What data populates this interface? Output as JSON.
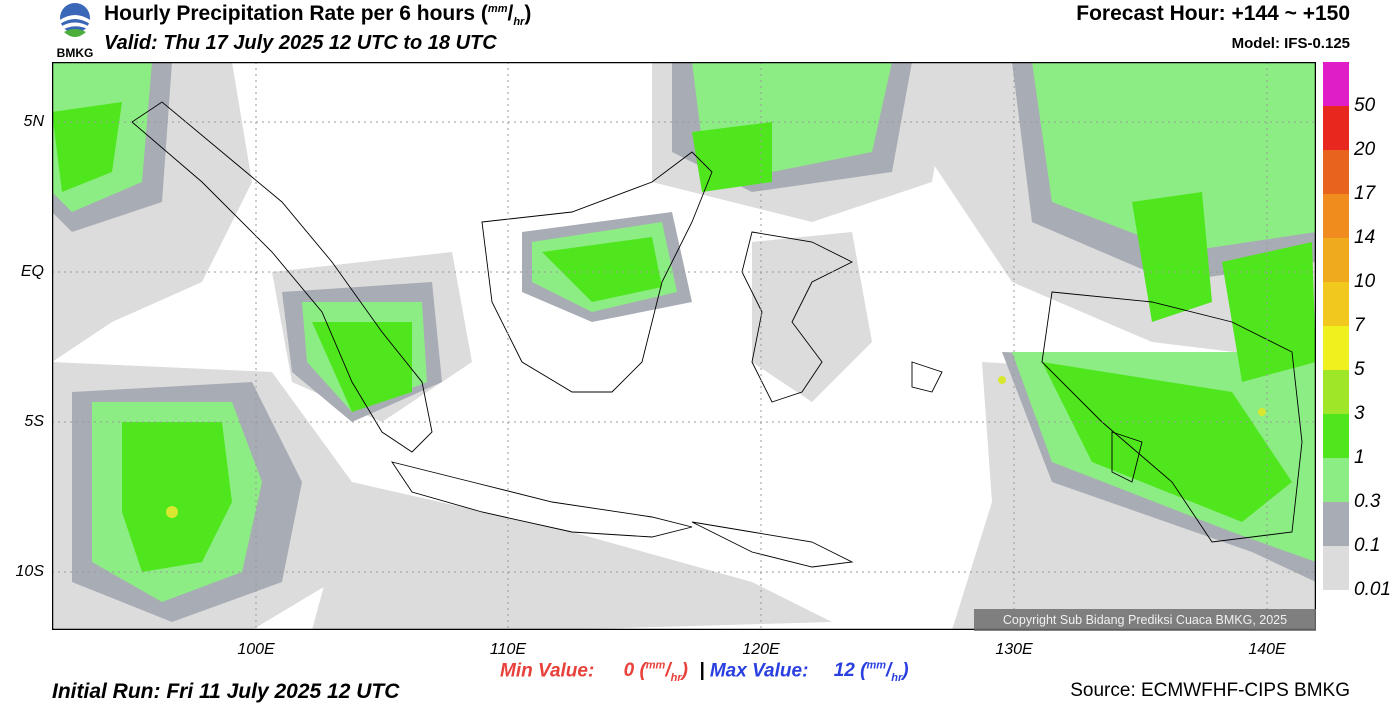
{
  "header": {
    "logo_text": "BMKG",
    "title": "Hourly Precipitation Rate per 6 hours",
    "title_unit_num": "mm",
    "title_unit_den": "hr",
    "valid": "Valid: Thu 17 July 2025 12 UTC to 18 UTC",
    "forecast_hour": "Forecast Hour: +144 ~ +150",
    "model": "Model: IFS-0.125"
  },
  "map": {
    "lat_labels": [
      "5N",
      "EQ",
      "5S",
      "10S"
    ],
    "lon_labels": [
      "100E",
      "110E",
      "120E",
      "130E",
      "140E"
    ],
    "copyright": "Copyright Sub Bidang Prediksi Cuaca BMKG, 2025"
  },
  "colorbar": {
    "labels": [
      "50",
      "20",
      "17",
      "14",
      "10",
      "7",
      "5",
      "3",
      "1",
      "0.3",
      "0.1",
      "0.01"
    ],
    "colors": [
      "#e01ec8",
      "#e8281e",
      "#e8641e",
      "#f08c1e",
      "#f0aa1e",
      "#f0c81e",
      "#f0f01e",
      "#a0e628",
      "#50e61e",
      "#8ced84",
      "#a8acb4",
      "#dcdcdc"
    ]
  },
  "footer": {
    "min_label": "Min Value:",
    "min_value": "0",
    "separator": "|",
    "max_label": "Max Value:",
    "max_value": "12",
    "unit_num": "mm",
    "unit_den": "hr",
    "initial_run": "Initial Run: Fri 11 July 2025 12 UTC",
    "source": "Source: ECMWFHF-CIPS BMKG"
  }
}
